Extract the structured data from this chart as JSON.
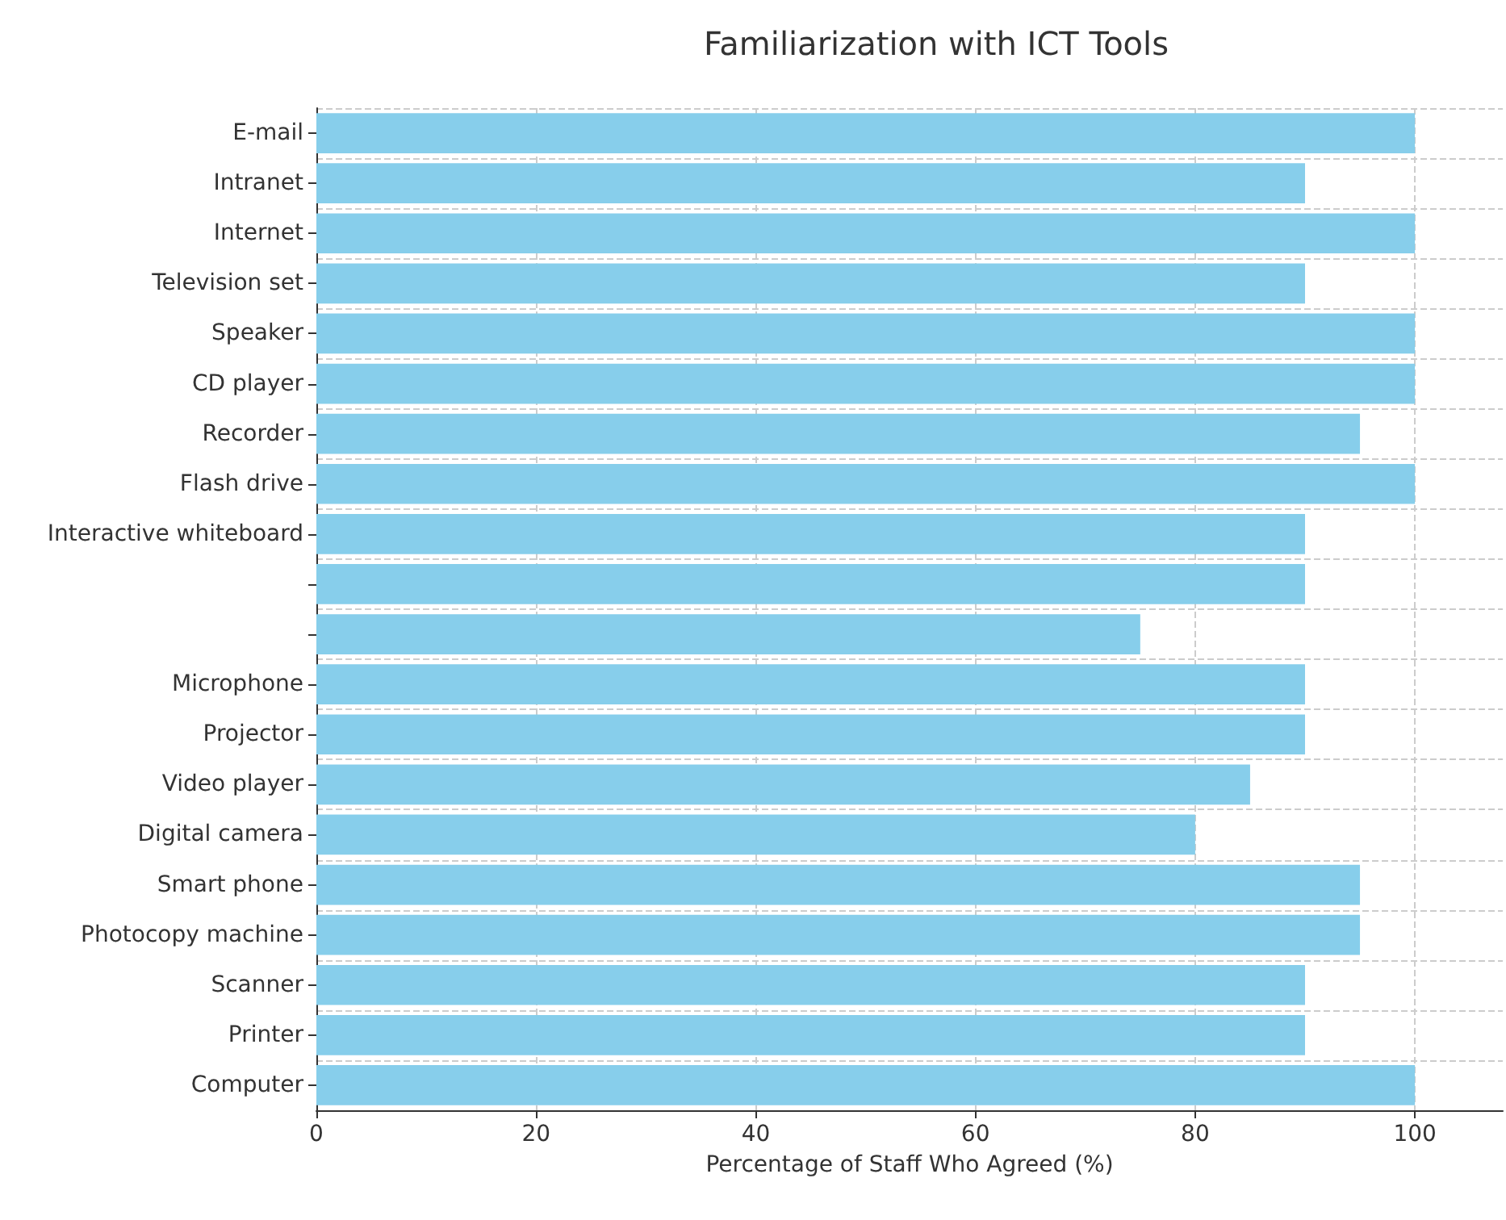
{
  "chart_data": {
    "type": "bar",
    "title": "Familiarization with ICT Tools",
    "xlabel": "Percentage of Staff Who Agreed (%)",
    "orientation": "horizontal",
    "categories": [
      "E-mail",
      "Intranet",
      "Internet",
      "Television set",
      "Speaker",
      "CD player",
      "Recorder",
      "Flash drive",
      "Interactive whiteboard",
      null,
      null,
      "Microphone",
      "Projector",
      "Video player",
      "Digital camera",
      "Smart phone",
      "Photocopy machine",
      "Scanner",
      "Printer",
      "Computer"
    ],
    "values": [
      100,
      90,
      100,
      90,
      100,
      100,
      95,
      100,
      90,
      90,
      75,
      90,
      90,
      85,
      80,
      95,
      95,
      90,
      90,
      100
    ],
    "color": "#87ceeb",
    "xlim": [
      0,
      108
    ],
    "xticks": [
      0,
      20,
      40,
      60,
      80,
      100
    ],
    "grid": true
  }
}
